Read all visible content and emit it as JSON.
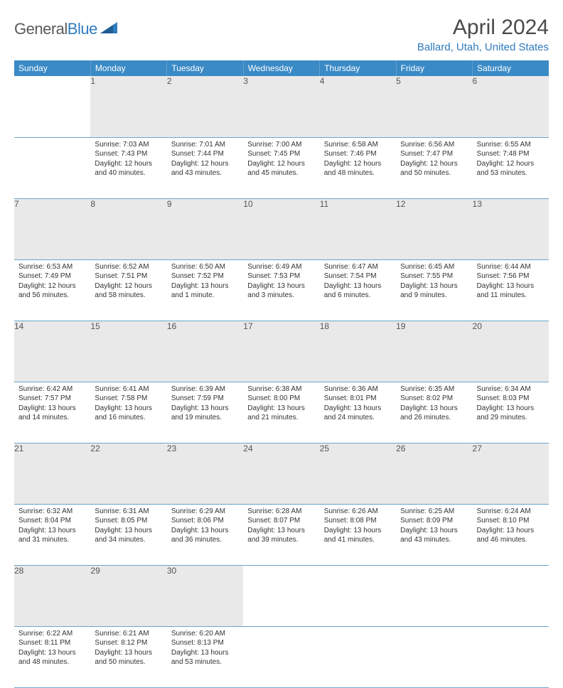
{
  "logo": {
    "word1": "General",
    "word2": "Blue"
  },
  "title": "April 2024",
  "location": "Ballard, Utah, United States",
  "colors": {
    "header_bg": "#3a8ac6",
    "header_text": "#ffffff",
    "daynum_bg": "#e9e9e9",
    "row_border": "#6aa5cc",
    "accent": "#2f7bbf",
    "body_text": "#333333"
  },
  "typography": {
    "title_fontsize": 30,
    "location_fontsize": 15,
    "dayhead_fontsize": 12,
    "daynum_fontsize": 12,
    "cell_fontsize": 10
  },
  "day_headers": [
    "Sunday",
    "Monday",
    "Tuesday",
    "Wednesday",
    "Thursday",
    "Friday",
    "Saturday"
  ],
  "weeks": [
    [
      null,
      {
        "n": "1",
        "sr": "Sunrise: 7:03 AM",
        "ss": "Sunset: 7:43 PM",
        "dl": "Daylight: 12 hours and 40 minutes."
      },
      {
        "n": "2",
        "sr": "Sunrise: 7:01 AM",
        "ss": "Sunset: 7:44 PM",
        "dl": "Daylight: 12 hours and 43 minutes."
      },
      {
        "n": "3",
        "sr": "Sunrise: 7:00 AM",
        "ss": "Sunset: 7:45 PM",
        "dl": "Daylight: 12 hours and 45 minutes."
      },
      {
        "n": "4",
        "sr": "Sunrise: 6:58 AM",
        "ss": "Sunset: 7:46 PM",
        "dl": "Daylight: 12 hours and 48 minutes."
      },
      {
        "n": "5",
        "sr": "Sunrise: 6:56 AM",
        "ss": "Sunset: 7:47 PM",
        "dl": "Daylight: 12 hours and 50 minutes."
      },
      {
        "n": "6",
        "sr": "Sunrise: 6:55 AM",
        "ss": "Sunset: 7:48 PM",
        "dl": "Daylight: 12 hours and 53 minutes."
      }
    ],
    [
      {
        "n": "7",
        "sr": "Sunrise: 6:53 AM",
        "ss": "Sunset: 7:49 PM",
        "dl": "Daylight: 12 hours and 56 minutes."
      },
      {
        "n": "8",
        "sr": "Sunrise: 6:52 AM",
        "ss": "Sunset: 7:51 PM",
        "dl": "Daylight: 12 hours and 58 minutes."
      },
      {
        "n": "9",
        "sr": "Sunrise: 6:50 AM",
        "ss": "Sunset: 7:52 PM",
        "dl": "Daylight: 13 hours and 1 minute."
      },
      {
        "n": "10",
        "sr": "Sunrise: 6:49 AM",
        "ss": "Sunset: 7:53 PM",
        "dl": "Daylight: 13 hours and 3 minutes."
      },
      {
        "n": "11",
        "sr": "Sunrise: 6:47 AM",
        "ss": "Sunset: 7:54 PM",
        "dl": "Daylight: 13 hours and 6 minutes."
      },
      {
        "n": "12",
        "sr": "Sunrise: 6:45 AM",
        "ss": "Sunset: 7:55 PM",
        "dl": "Daylight: 13 hours and 9 minutes."
      },
      {
        "n": "13",
        "sr": "Sunrise: 6:44 AM",
        "ss": "Sunset: 7:56 PM",
        "dl": "Daylight: 13 hours and 11 minutes."
      }
    ],
    [
      {
        "n": "14",
        "sr": "Sunrise: 6:42 AM",
        "ss": "Sunset: 7:57 PM",
        "dl": "Daylight: 13 hours and 14 minutes."
      },
      {
        "n": "15",
        "sr": "Sunrise: 6:41 AM",
        "ss": "Sunset: 7:58 PM",
        "dl": "Daylight: 13 hours and 16 minutes."
      },
      {
        "n": "16",
        "sr": "Sunrise: 6:39 AM",
        "ss": "Sunset: 7:59 PM",
        "dl": "Daylight: 13 hours and 19 minutes."
      },
      {
        "n": "17",
        "sr": "Sunrise: 6:38 AM",
        "ss": "Sunset: 8:00 PM",
        "dl": "Daylight: 13 hours and 21 minutes."
      },
      {
        "n": "18",
        "sr": "Sunrise: 6:36 AM",
        "ss": "Sunset: 8:01 PM",
        "dl": "Daylight: 13 hours and 24 minutes."
      },
      {
        "n": "19",
        "sr": "Sunrise: 6:35 AM",
        "ss": "Sunset: 8:02 PM",
        "dl": "Daylight: 13 hours and 26 minutes."
      },
      {
        "n": "20",
        "sr": "Sunrise: 6:34 AM",
        "ss": "Sunset: 8:03 PM",
        "dl": "Daylight: 13 hours and 29 minutes."
      }
    ],
    [
      {
        "n": "21",
        "sr": "Sunrise: 6:32 AM",
        "ss": "Sunset: 8:04 PM",
        "dl": "Daylight: 13 hours and 31 minutes."
      },
      {
        "n": "22",
        "sr": "Sunrise: 6:31 AM",
        "ss": "Sunset: 8:05 PM",
        "dl": "Daylight: 13 hours and 34 minutes."
      },
      {
        "n": "23",
        "sr": "Sunrise: 6:29 AM",
        "ss": "Sunset: 8:06 PM",
        "dl": "Daylight: 13 hours and 36 minutes."
      },
      {
        "n": "24",
        "sr": "Sunrise: 6:28 AM",
        "ss": "Sunset: 8:07 PM",
        "dl": "Daylight: 13 hours and 39 minutes."
      },
      {
        "n": "25",
        "sr": "Sunrise: 6:26 AM",
        "ss": "Sunset: 8:08 PM",
        "dl": "Daylight: 13 hours and 41 minutes."
      },
      {
        "n": "26",
        "sr": "Sunrise: 6:25 AM",
        "ss": "Sunset: 8:09 PM",
        "dl": "Daylight: 13 hours and 43 minutes."
      },
      {
        "n": "27",
        "sr": "Sunrise: 6:24 AM",
        "ss": "Sunset: 8:10 PM",
        "dl": "Daylight: 13 hours and 46 minutes."
      }
    ],
    [
      {
        "n": "28",
        "sr": "Sunrise: 6:22 AM",
        "ss": "Sunset: 8:11 PM",
        "dl": "Daylight: 13 hours and 48 minutes."
      },
      {
        "n": "29",
        "sr": "Sunrise: 6:21 AM",
        "ss": "Sunset: 8:12 PM",
        "dl": "Daylight: 13 hours and 50 minutes."
      },
      {
        "n": "30",
        "sr": "Sunrise: 6:20 AM",
        "ss": "Sunset: 8:13 PM",
        "dl": "Daylight: 13 hours and 53 minutes."
      },
      null,
      null,
      null,
      null
    ]
  ]
}
